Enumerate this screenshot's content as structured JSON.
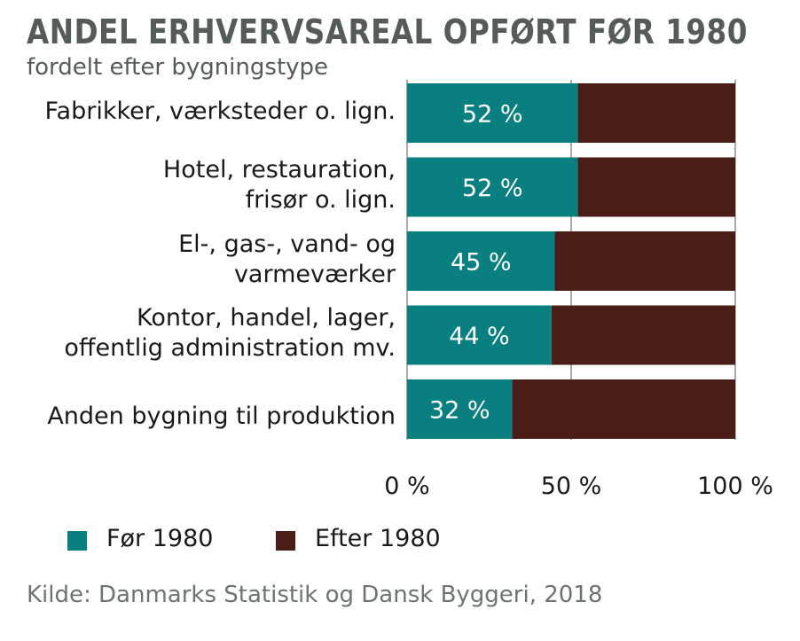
{
  "chart_data": {
    "type": "bar",
    "orientation": "horizontal",
    "stacked": true,
    "title": "ANDEL ERHVERVSAREAL OPFØRT FØR 1980",
    "subtitle": "fordelt efter bygningstype",
    "categories": [
      [
        "Fabrikker, værksteder o. lign."
      ],
      [
        "Hotel, restauration,",
        "frisør o. lign."
      ],
      [
        "El-, gas-, vand- og",
        "varmeværker"
      ],
      [
        "Kontor, handel, lager,",
        "offentlig administration mv."
      ],
      [
        "Anden bygning til produktion"
      ]
    ],
    "series": [
      {
        "name": "Før 1980",
        "color": "#0a7f80",
        "values": [
          52,
          52,
          45,
          44,
          32
        ],
        "labels": [
          "52 %",
          "52 %",
          "45 %",
          "44 %",
          "32 %"
        ]
      },
      {
        "name": "Efter 1980",
        "color": "#4a1e16",
        "values": [
          48,
          48,
          55,
          56,
          68
        ]
      }
    ],
    "xlim": [
      0,
      100
    ],
    "xticks": [
      0,
      50,
      100
    ],
    "xtick_labels": [
      "0 %",
      "50 %",
      "100 %"
    ],
    "grid": true,
    "legend_position": "bottom-left",
    "source": "Kilde: Danmarks Statistik og Dansk Byggeri, 2018"
  }
}
